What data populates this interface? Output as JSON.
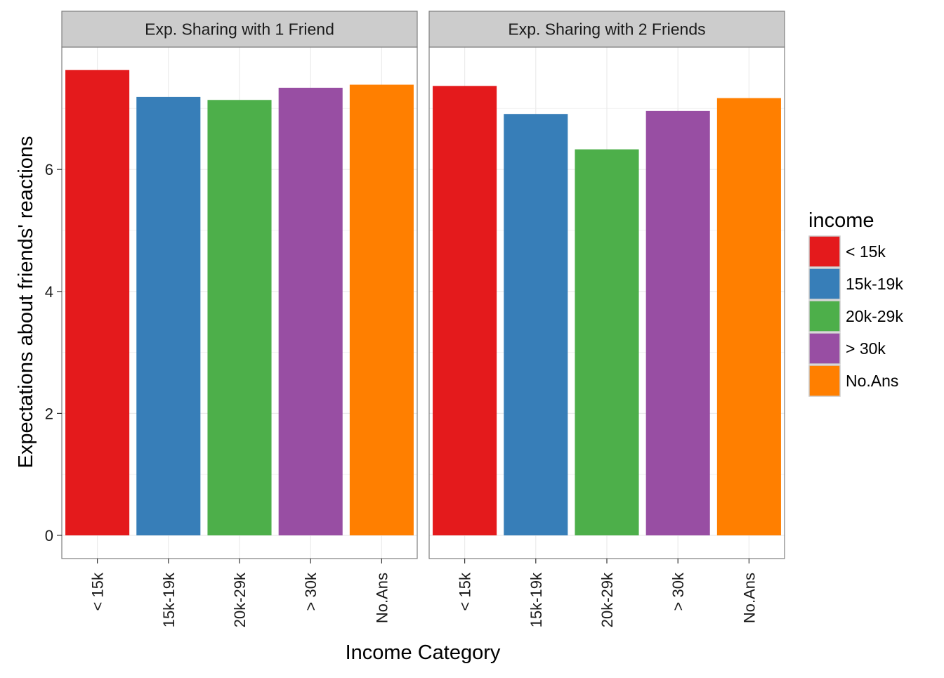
{
  "chart_data": {
    "type": "bar",
    "xlabel": "Income Category",
    "ylabel": "Expectations about friends' reactions",
    "ylim": [
      -0.35,
      8.0
    ],
    "yticks": [
      0,
      2,
      4,
      6
    ],
    "categories": [
      "< 15k",
      "15k-19k",
      "20k-29k",
      "> 30k",
      "No.Ans"
    ],
    "panels": [
      {
        "title": "Exp. Sharing with 1 Friend",
        "values": [
          7.63,
          7.19,
          7.14,
          7.34,
          7.39
        ]
      },
      {
        "title": "Exp. Sharing with 2 Friends",
        "values": [
          7.37,
          6.91,
          6.33,
          6.96,
          7.17
        ]
      }
    ],
    "legend": {
      "title": "income",
      "position": "right",
      "items": [
        "< 15k",
        "15k-19k",
        "20k-29k",
        "> 30k",
        "No.Ans"
      ]
    },
    "colors": [
      "#E41A1C",
      "#377EB8",
      "#4DAF4A",
      "#984EA3",
      "#FF7F00"
    ],
    "grid": true
  }
}
